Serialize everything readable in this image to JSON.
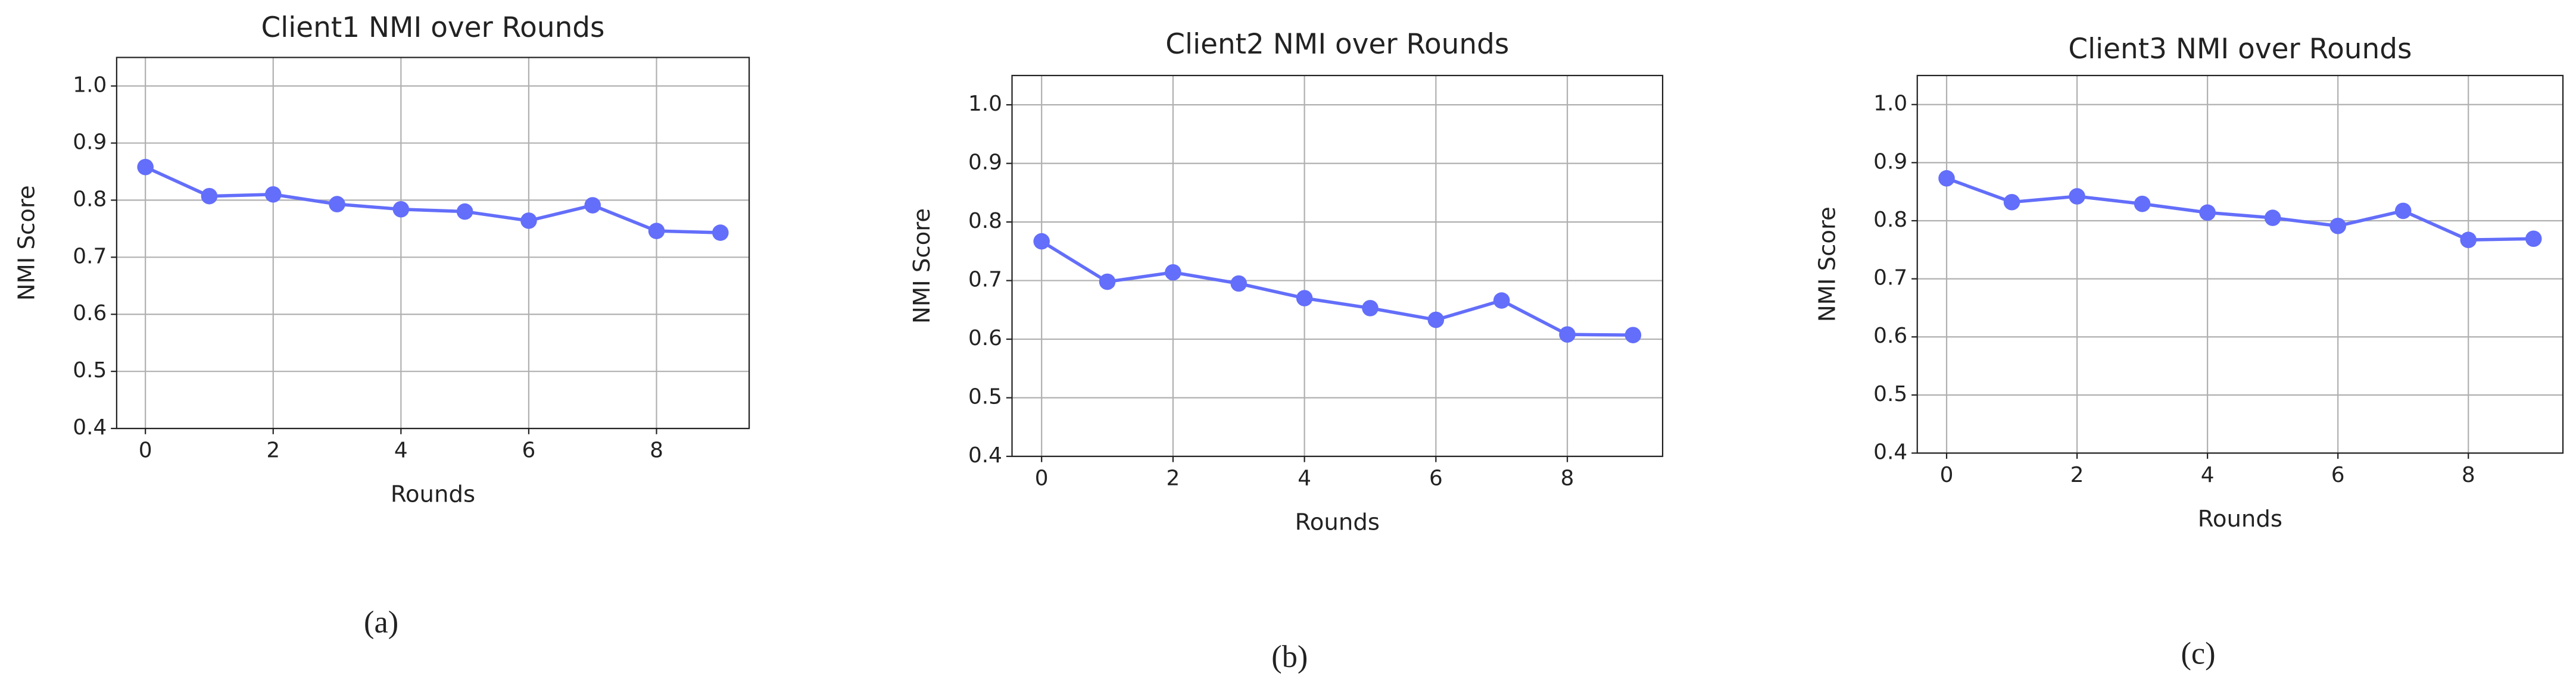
{
  "chart_data": [
    {
      "type": "line",
      "title": "Client1 NMI over Rounds",
      "xlabel": "Rounds",
      "ylabel": "NMI Score",
      "caption": "(a)",
      "x": [
        0,
        1,
        2,
        3,
        4,
        5,
        6,
        7,
        8,
        9
      ],
      "values": [
        0.858,
        0.807,
        0.81,
        0.793,
        0.784,
        0.78,
        0.764,
        0.791,
        0.746,
        0.743
      ],
      "color": "#636efa",
      "xlim": [
        -0.45,
        9.45
      ],
      "xticks": [
        0,
        2,
        4,
        6,
        8
      ],
      "ylim": [
        0.4,
        1.05
      ],
      "yticks": [
        0.4,
        0.5,
        0.6,
        0.7,
        0.8,
        0.9,
        {
          "value": 1,
          "label": "1.0"
        }
      ],
      "grid": true
    },
    {
      "type": "line",
      "title": "Client2 NMI over Rounds",
      "xlabel": "Rounds",
      "ylabel": "NMI Score",
      "caption": "(b)",
      "x": [
        0,
        1,
        2,
        3,
        4,
        5,
        6,
        7,
        8,
        9
      ],
      "values": [
        0.767,
        0.698,
        0.714,
        0.695,
        0.67,
        0.653,
        0.633,
        0.666,
        0.608,
        0.607
      ],
      "color": "#636efa",
      "xlim": [
        -0.45,
        9.45
      ],
      "xticks": [
        0,
        2,
        4,
        6,
        8
      ],
      "ylim": [
        0.4,
        1.05
      ],
      "yticks": [
        0.4,
        0.5,
        0.6,
        0.7,
        0.8,
        0.9,
        {
          "value": 1,
          "label": "1.0"
        }
      ],
      "grid": true
    },
    {
      "type": "line",
      "title": "Client3 NMI over Rounds",
      "xlabel": "Rounds",
      "ylabel": "NMI Score",
      "caption": "(c)",
      "x": [
        0,
        1,
        2,
        3,
        4,
        5,
        6,
        7,
        8,
        9
      ],
      "values": [
        0.873,
        0.832,
        0.842,
        0.829,
        0.814,
        0.805,
        0.791,
        0.817,
        0.767,
        0.769
      ],
      "color": "#636efa",
      "xlim": [
        -0.45,
        9.45
      ],
      "xticks": [
        0,
        2,
        4,
        6,
        8
      ],
      "ylim": [
        0.4,
        1.05
      ],
      "yticks": [
        0.4,
        0.5,
        0.6,
        0.7,
        0.8,
        0.9,
        {
          "value": 1,
          "label": "1.0"
        }
      ],
      "grid": true
    }
  ]
}
